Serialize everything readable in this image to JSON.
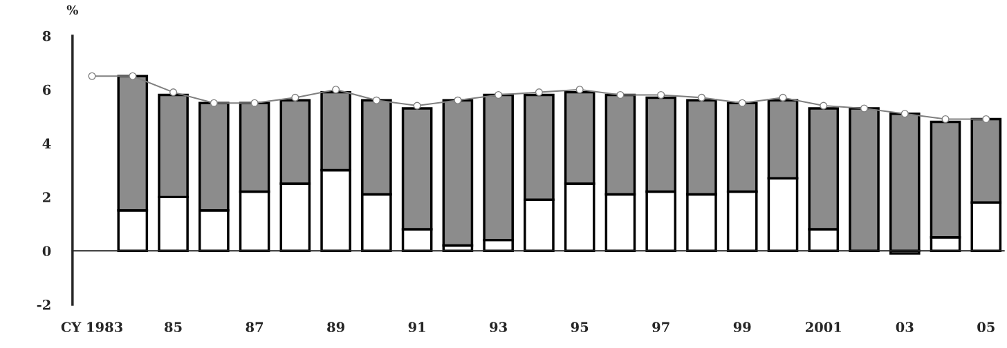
{
  "chart_data": {
    "type": "bar",
    "stacked": true,
    "ylabel": "%",
    "categories": [
      "CY 1983",
      null,
      "85",
      null,
      "87",
      null,
      "89",
      null,
      "91",
      null,
      "93",
      null,
      "95",
      null,
      "97",
      null,
      "99",
      null,
      "2001",
      null,
      "03",
      null,
      "05"
    ],
    "series": [
      {
        "color": "#ffffff",
        "values": [
          null,
          1.5,
          2.0,
          1.5,
          2.2,
          2.5,
          3.0,
          2.1,
          0.8,
          0.2,
          0.4,
          1.9,
          2.5,
          2.1,
          2.2,
          2.1,
          2.2,
          2.7,
          0.8,
          0.0,
          -0.1,
          0.5,
          1.8
        ]
      },
      {
        "color": "#8c8c8c",
        "values": [
          null,
          5.0,
          3.8,
          4.0,
          3.3,
          3.1,
          2.9,
          3.5,
          4.5,
          5.4,
          5.4,
          3.9,
          3.4,
          3.7,
          3.5,
          3.5,
          3.3,
          2.9,
          4.5,
          5.3,
          5.1,
          4.3,
          3.1
        ]
      },
      {
        "type": "line",
        "color": "#808080",
        "values": [
          6.5,
          6.5,
          5.9,
          5.5,
          5.5,
          5.7,
          6.0,
          5.6,
          5.4,
          5.6,
          5.8,
          5.9,
          6.0,
          5.8,
          5.8,
          5.7,
          5.5,
          5.7,
          5.4,
          5.3,
          5.1,
          4.9,
          4.9
        ]
      }
    ],
    "marker": "circle",
    "ylim": [
      -2,
      8
    ],
    "yticks": [
      -2,
      0,
      2,
      4,
      6,
      8
    ]
  }
}
